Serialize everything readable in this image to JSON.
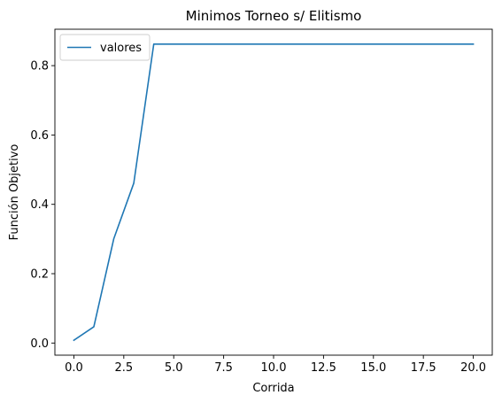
{
  "chart_data": {
    "type": "line",
    "title": "Minimos Torneo s/ Elitismo",
    "xlabel": "Corrida",
    "ylabel": "Función Objetivo",
    "xlim": [
      -0.95,
      20.95
    ],
    "ylim": [
      -0.035,
      0.905
    ],
    "x_ticks": [
      0.0,
      2.5,
      5.0,
      7.5,
      10.0,
      12.5,
      15.0,
      17.5,
      20.0
    ],
    "x_tick_labels": [
      "0.0",
      "2.5",
      "5.0",
      "7.5",
      "10.0",
      "12.5",
      "15.0",
      "17.5",
      "20.0"
    ],
    "y_ticks": [
      0.0,
      0.2,
      0.4,
      0.6,
      0.8
    ],
    "y_tick_labels": [
      "0.0",
      "0.2",
      "0.4",
      "0.6",
      "0.8"
    ],
    "grid": false,
    "legend_position": "top-left",
    "series": [
      {
        "name": "valores",
        "color": "#1f77b4",
        "x": [
          0,
          1,
          2,
          3,
          4,
          5,
          6,
          7,
          8,
          9,
          10,
          11,
          12,
          13,
          14,
          15,
          16,
          17,
          18,
          19,
          20
        ],
        "values": [
          0.008,
          0.047,
          0.301,
          0.461,
          0.862,
          0.862,
          0.862,
          0.862,
          0.862,
          0.862,
          0.862,
          0.862,
          0.862,
          0.862,
          0.862,
          0.862,
          0.862,
          0.862,
          0.862,
          0.862,
          0.862
        ]
      }
    ]
  }
}
